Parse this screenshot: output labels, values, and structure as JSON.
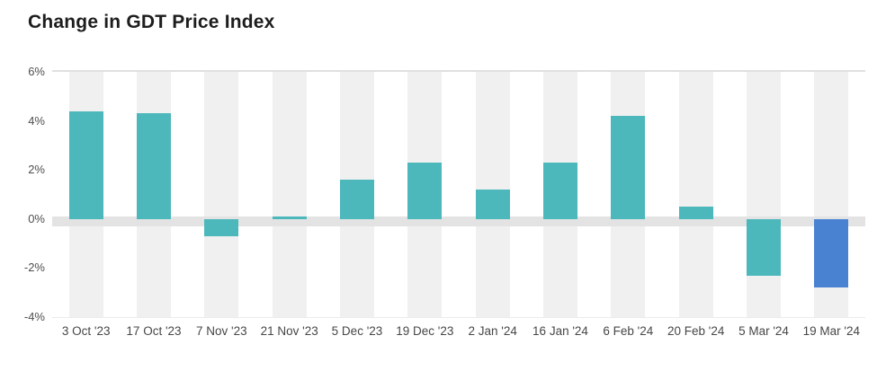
{
  "page": {
    "title": "Change in GDT Price Index"
  },
  "chart_data": {
    "type": "bar",
    "title": "Change in GDT Price Index",
    "categories": [
      "3 Oct '23",
      "17 Oct '23",
      "7 Nov '23",
      "21 Nov '23",
      "5 Dec '23",
      "19 Dec '23",
      "2 Jan '24",
      "16 Jan '24",
      "6 Feb '24",
      "20 Feb '24",
      "5 Mar '24",
      "19 Mar '24"
    ],
    "values": [
      4.4,
      4.3,
      -0.7,
      0.1,
      1.6,
      2.3,
      1.2,
      2.3,
      4.2,
      0.5,
      -2.3,
      -2.8
    ],
    "unit": "%",
    "xlabel": "",
    "ylabel": "",
    "ylim": [
      -4,
      6
    ],
    "yticks": [
      {
        "label": "6%",
        "value": 6
      },
      {
        "label": "4%",
        "value": 4
      },
      {
        "label": "2%",
        "value": 2
      },
      {
        "label": "0%",
        "value": 0
      },
      {
        "label": "-2%",
        "value": -2
      },
      {
        "label": "-4%",
        "value": -4
      }
    ],
    "legend": "none",
    "grid": "no horizontal gridlines; top plot border, zero band, alternating vertical column bands",
    "highlight_index": 11,
    "colors": {
      "bar_default": "#4cb8bb",
      "bar_highlight": "#4a82d2",
      "column_band": "#f0f0f0",
      "zero_band": "#e3e3e3",
      "plot_top_border": "#e0e0e0",
      "title_text": "#1d1d1d",
      "axis_text": "#4f4f4f"
    }
  }
}
